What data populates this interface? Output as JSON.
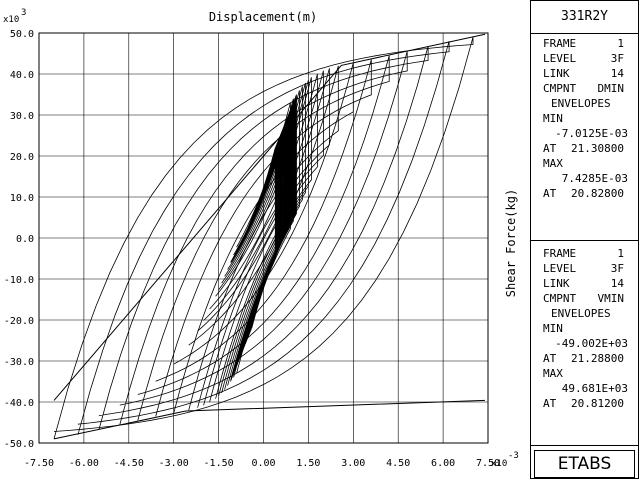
{
  "chart_data": {
    "type": "line",
    "title": "Displacement(m)",
    "xlabel": "Displacement(m)",
    "ylabel": "Shear Force(kg)",
    "x_scale_label": "x10",
    "x_scale_exp": "-3",
    "y_scale_label": "x10",
    "y_scale_exp": "3",
    "xlim": [
      -7.5,
      7.5
    ],
    "ylim": [
      -50.0,
      50.0
    ],
    "x_ticks": [
      "-7.50",
      "-6.00",
      "-4.50",
      "-3.00",
      "-1.50",
      "0.00",
      "1.50",
      "3.00",
      "4.50",
      "6.00",
      "7.50"
    ],
    "y_ticks": [
      "50.0",
      "40.0",
      "30.0",
      "20.0",
      "10.0",
      "0.0",
      "-10.0",
      "-20.0",
      "-30.0",
      "-40.0",
      "-50.0"
    ],
    "grid": true,
    "envelope": {
      "upper": [
        [
          -7.0,
          -39.6
        ],
        [
          2.6,
          42.1
        ],
        [
          7.4,
          49.7
        ]
      ],
      "lower": [
        [
          -7.0,
          -49.0
        ],
        [
          -2.6,
          -42.2
        ],
        [
          7.4,
          -39.6
        ]
      ]
    },
    "loops": [
      {
        "dmax": 0.9,
        "fmax": 33.0
      },
      {
        "dmax": 1.0,
        "fmax": 34.0
      },
      {
        "dmax": 1.1,
        "fmax": 35.0
      },
      {
        "dmax": 1.2,
        "fmax": 36.0
      },
      {
        "dmax": 1.3,
        "fmax": 37.0
      },
      {
        "dmax": 1.4,
        "fmax": 37.8
      },
      {
        "dmax": 1.5,
        "fmax": 38.5
      },
      {
        "dmax": 1.6,
        "fmax": 39.2
      },
      {
        "dmax": 1.8,
        "fmax": 40.0
      },
      {
        "dmax": 2.0,
        "fmax": 40.8
      },
      {
        "dmax": 2.2,
        "fmax": 41.4
      },
      {
        "dmax": 2.5,
        "fmax": 42.0
      },
      {
        "dmax": 3.0,
        "fmax": 42.7
      },
      {
        "dmax": 3.6,
        "fmax": 43.5
      },
      {
        "dmax": 4.2,
        "fmax": 44.5
      },
      {
        "dmax": 4.8,
        "fmax": 45.5
      },
      {
        "dmax": 5.5,
        "fmax": 46.8
      },
      {
        "dmax": 6.2,
        "fmax": 48.0
      },
      {
        "dmax": 7.0,
        "fmax": 49.0
      }
    ]
  },
  "panel": {
    "title": "331R2Y",
    "block1": {
      "frame_label": "FRAME",
      "frame_value": "1",
      "level_label": "LEVEL",
      "level_value": "3F",
      "link_label": "LINK",
      "link_value": "14",
      "cmpnt_label": "CMPNT",
      "cmpnt_value": "DMIN",
      "envelopes": "ENVELOPES",
      "min_label": "MIN",
      "min_value": "-7.0125E-03",
      "min_at_label": "AT",
      "min_at_value": "21.30800",
      "max_label": "MAX",
      "max_value": "7.4285E-03",
      "max_at_label": "AT",
      "max_at_value": "20.82800"
    },
    "block2": {
      "frame_label": "FRAME",
      "frame_value": "1",
      "level_label": "LEVEL",
      "level_value": "3F",
      "link_label": "LINK",
      "link_value": "14",
      "cmpnt_label": "CMPNT",
      "cmpnt_value": "VMIN",
      "envelopes": "ENVELOPES",
      "min_label": "MIN",
      "min_value": "-49.002E+03",
      "min_at_label": "AT",
      "min_at_value": "21.28800",
      "max_label": "MAX",
      "max_value": "49.681E+03",
      "max_at_label": "AT",
      "max_at_value": "20.81200"
    },
    "brand": "ETABS"
  }
}
